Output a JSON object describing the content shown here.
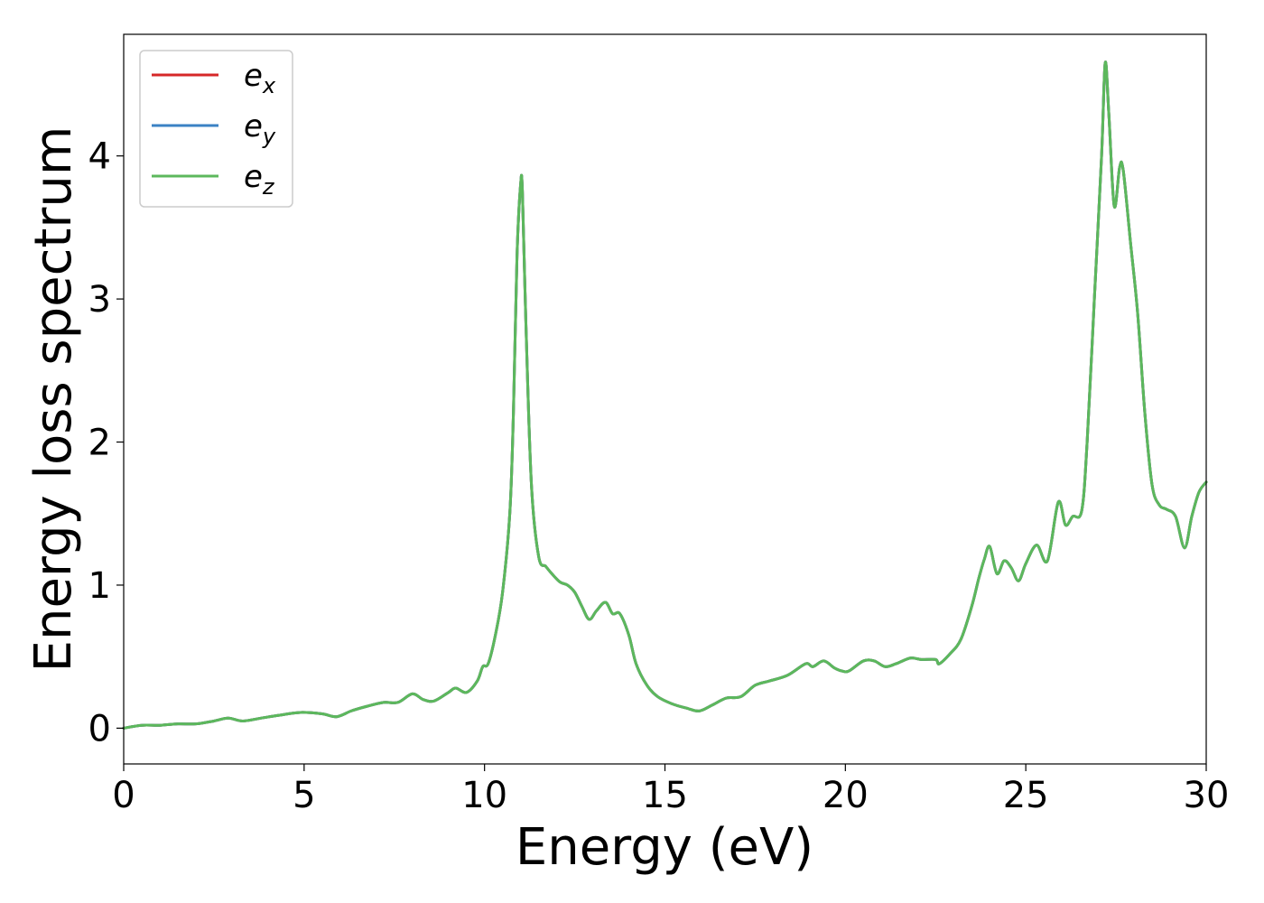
{
  "chart_data": {
    "type": "line",
    "title": "",
    "xlabel": "Energy (eV)",
    "ylabel": "Energy loss spectrum",
    "xlim": [
      0,
      30
    ],
    "ylim": [
      -0.25,
      4.85
    ],
    "xticks": [
      0,
      5,
      10,
      15,
      20,
      25,
      30
    ],
    "yticks": [
      0,
      1,
      2,
      3,
      4
    ],
    "xtick_labels": [
      "0",
      "5",
      "10",
      "15",
      "20",
      "25",
      "30"
    ],
    "ytick_labels": [
      "0",
      "1",
      "2",
      "3",
      "4"
    ],
    "grid": false,
    "legend": {
      "position": "top-left",
      "entries": [
        {
          "base": "e",
          "sub": "x",
          "color": "#d62728"
        },
        {
          "base": "e",
          "sub": "y",
          "color": "#3b82c4"
        },
        {
          "base": "e",
          "sub": "z",
          "color": "#5cb85c"
        }
      ]
    },
    "x": [
      0,
      0.5,
      1,
      1.5,
      2,
      2.5,
      2.9,
      3.3,
      3.8,
      4.3,
      4.9,
      5.5,
      5.9,
      6.3,
      6.7,
      7.2,
      7.6,
      8.0,
      8.3,
      8.6,
      9.0,
      9.2,
      9.5,
      9.8,
      9.95,
      10.1,
      10.3,
      10.5,
      10.7,
      10.8,
      10.9,
      11.0,
      11.05,
      11.15,
      11.3,
      11.5,
      11.7,
      11.9,
      12.1,
      12.3,
      12.5,
      12.7,
      12.9,
      13.1,
      13.35,
      13.55,
      13.75,
      14.0,
      14.2,
      14.5,
      14.8,
      15.2,
      15.6,
      15.95,
      16.3,
      16.7,
      17.1,
      17.5,
      17.9,
      18.4,
      18.9,
      19.1,
      19.4,
      19.7,
      19.9,
      20.1,
      20.5,
      20.8,
      21.1,
      21.4,
      21.8,
      22.1,
      22.5,
      22.6,
      22.9,
      23.2,
      23.5,
      23.7,
      23.85,
      24.0,
      24.2,
      24.4,
      24.6,
      24.8,
      25.0,
      25.3,
      25.6,
      25.9,
      26.1,
      26.3,
      26.55,
      26.7,
      26.9,
      27.1,
      27.2,
      27.3,
      27.45,
      27.6,
      27.7,
      27.9,
      28.1,
      28.3,
      28.5,
      28.7,
      28.9,
      29.15,
      29.4,
      29.6,
      29.8,
      30.0
    ],
    "series": [
      {
        "name": "e_x",
        "color": "#d62728",
        "values": [
          0.0,
          0.02,
          0.02,
          0.03,
          0.03,
          0.05,
          0.07,
          0.05,
          0.07,
          0.09,
          0.11,
          0.1,
          0.08,
          0.12,
          0.15,
          0.18,
          0.18,
          0.24,
          0.2,
          0.19,
          0.25,
          0.28,
          0.25,
          0.33,
          0.43,
          0.45,
          0.65,
          0.95,
          1.5,
          2.2,
          3.3,
          3.8,
          3.75,
          2.8,
          1.7,
          1.2,
          1.13,
          1.07,
          1.02,
          1.0,
          0.95,
          0.85,
          0.76,
          0.82,
          0.88,
          0.8,
          0.8,
          0.65,
          0.45,
          0.3,
          0.22,
          0.17,
          0.14,
          0.12,
          0.16,
          0.21,
          0.22,
          0.3,
          0.33,
          0.37,
          0.45,
          0.43,
          0.47,
          0.42,
          0.4,
          0.4,
          0.47,
          0.47,
          0.43,
          0.45,
          0.49,
          0.48,
          0.48,
          0.45,
          0.52,
          0.62,
          0.85,
          1.05,
          1.18,
          1.27,
          1.08,
          1.17,
          1.12,
          1.03,
          1.15,
          1.28,
          1.17,
          1.58,
          1.42,
          1.48,
          1.52,
          2.0,
          3.0,
          4.0,
          4.65,
          4.3,
          3.65,
          3.92,
          3.9,
          3.4,
          2.9,
          2.2,
          1.7,
          1.56,
          1.53,
          1.48,
          1.26,
          1.48,
          1.65,
          1.72
        ]
      },
      {
        "name": "e_y",
        "color": "#3b82c4",
        "values": [
          0.0,
          0.02,
          0.02,
          0.03,
          0.03,
          0.05,
          0.07,
          0.05,
          0.07,
          0.09,
          0.11,
          0.1,
          0.08,
          0.12,
          0.15,
          0.18,
          0.18,
          0.24,
          0.2,
          0.19,
          0.25,
          0.28,
          0.25,
          0.33,
          0.43,
          0.45,
          0.65,
          0.95,
          1.5,
          2.2,
          3.3,
          3.8,
          3.75,
          2.8,
          1.7,
          1.2,
          1.13,
          1.07,
          1.02,
          1.0,
          0.95,
          0.85,
          0.76,
          0.82,
          0.88,
          0.8,
          0.8,
          0.65,
          0.45,
          0.3,
          0.22,
          0.17,
          0.14,
          0.12,
          0.16,
          0.21,
          0.22,
          0.3,
          0.33,
          0.37,
          0.45,
          0.43,
          0.47,
          0.42,
          0.4,
          0.4,
          0.47,
          0.47,
          0.43,
          0.45,
          0.49,
          0.48,
          0.48,
          0.45,
          0.52,
          0.62,
          0.85,
          1.05,
          1.18,
          1.27,
          1.08,
          1.17,
          1.12,
          1.03,
          1.15,
          1.28,
          1.17,
          1.58,
          1.42,
          1.48,
          1.52,
          2.0,
          3.0,
          4.0,
          4.65,
          4.3,
          3.65,
          3.92,
          3.9,
          3.4,
          2.9,
          2.2,
          1.7,
          1.56,
          1.53,
          1.48,
          1.26,
          1.48,
          1.65,
          1.72
        ]
      },
      {
        "name": "e_z",
        "color": "#5cb85c",
        "values": [
          0.0,
          0.02,
          0.02,
          0.03,
          0.03,
          0.05,
          0.07,
          0.05,
          0.07,
          0.09,
          0.11,
          0.1,
          0.08,
          0.12,
          0.15,
          0.18,
          0.18,
          0.24,
          0.2,
          0.19,
          0.25,
          0.28,
          0.25,
          0.33,
          0.43,
          0.45,
          0.65,
          0.95,
          1.5,
          2.2,
          3.3,
          3.8,
          3.75,
          2.8,
          1.7,
          1.2,
          1.13,
          1.07,
          1.02,
          1.0,
          0.95,
          0.85,
          0.76,
          0.82,
          0.88,
          0.8,
          0.8,
          0.65,
          0.45,
          0.3,
          0.22,
          0.17,
          0.14,
          0.12,
          0.16,
          0.21,
          0.22,
          0.3,
          0.33,
          0.37,
          0.45,
          0.43,
          0.47,
          0.42,
          0.4,
          0.4,
          0.47,
          0.47,
          0.43,
          0.45,
          0.49,
          0.48,
          0.48,
          0.45,
          0.52,
          0.62,
          0.85,
          1.05,
          1.18,
          1.27,
          1.08,
          1.17,
          1.12,
          1.03,
          1.15,
          1.28,
          1.17,
          1.58,
          1.42,
          1.48,
          1.52,
          2.0,
          3.0,
          4.0,
          4.65,
          4.3,
          3.65,
          3.92,
          3.9,
          3.4,
          2.9,
          2.2,
          1.7,
          1.56,
          1.53,
          1.48,
          1.26,
          1.48,
          1.65,
          1.72
        ]
      }
    ]
  }
}
